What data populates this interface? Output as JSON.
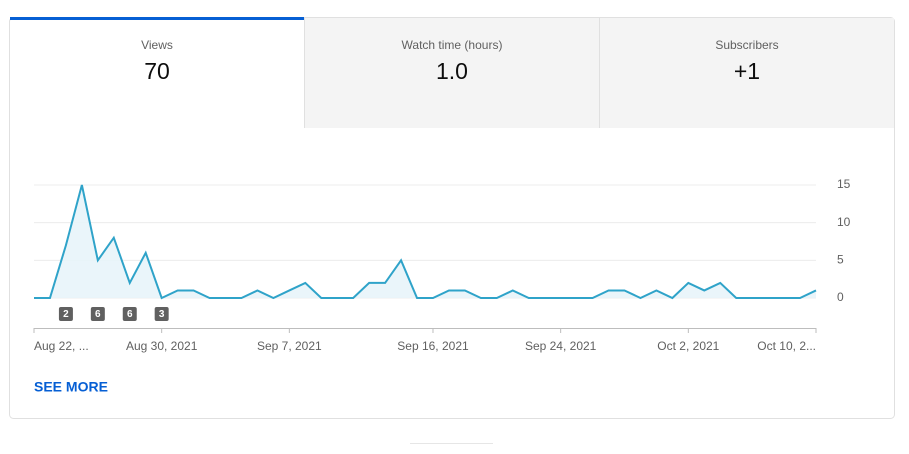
{
  "tabs": [
    {
      "label": "Views",
      "value": 70
    },
    {
      "label": "Watch time (hours)",
      "value": "1.0"
    },
    {
      "label": "Subscribers",
      "value": "+1"
    }
  ],
  "chart_data": {
    "type": "line",
    "color": "#2fa3c9",
    "categories": [
      "Aug 22, ...",
      null,
      null,
      null,
      null,
      null,
      null,
      null,
      "Aug 30, 2021",
      null,
      null,
      null,
      null,
      null,
      null,
      null,
      "Sep 7, 2021",
      null,
      null,
      null,
      null,
      null,
      null,
      null,
      null,
      "Sep 16, 2021",
      null,
      null,
      null,
      null,
      null,
      null,
      null,
      "Sep 24, 2021",
      null,
      null,
      null,
      null,
      null,
      null,
      null,
      "Oct 2, 2021",
      null,
      null,
      null,
      null,
      null,
      null,
      null,
      "Oct 10, 2..."
    ],
    "values": [
      0,
      0,
      7,
      15,
      5,
      8,
      2,
      6,
      0,
      1,
      1,
      0,
      0,
      0,
      1,
      0,
      1,
      2,
      0,
      0,
      0,
      2,
      2,
      5,
      0,
      0,
      1,
      1,
      0,
      0,
      1,
      0,
      0,
      0,
      0,
      0,
      1,
      1,
      0,
      1,
      0,
      2,
      1,
      2,
      0,
      0,
      0,
      0,
      0,
      1
    ],
    "markers": [
      null,
      null,
      2,
      null,
      6,
      null,
      6,
      null,
      3,
      null,
      null,
      null,
      null,
      null,
      null,
      null,
      null,
      null,
      null,
      null,
      null,
      null,
      null,
      null,
      null,
      null,
      null,
      null,
      null,
      null,
      null,
      null,
      null,
      null,
      null,
      null,
      null,
      null,
      null,
      null,
      null,
      null,
      null,
      null,
      null,
      null,
      null,
      null,
      null,
      null
    ],
    "ylim": [
      0,
      15
    ],
    "yticks": [
      0,
      5,
      10,
      15
    ],
    "grid": true
  },
  "link": "SEE MORE"
}
